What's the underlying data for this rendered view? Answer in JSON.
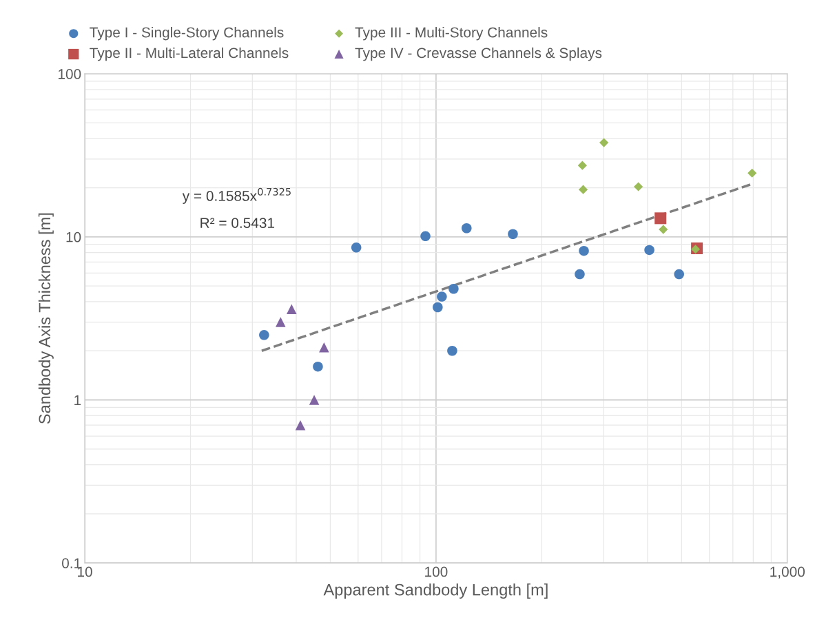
{
  "chart_data": {
    "type": "scatter",
    "xlabel": "Apparent Sandbody Length [m]",
    "ylabel": "Sandbody Axis Thickness [m]",
    "log": "xy",
    "xlim": [
      10,
      1000
    ],
    "ylim": [
      0.1,
      100
    ],
    "xticks": [
      10,
      100,
      {
        "value": 1000,
        "label": "1,000"
      }
    ],
    "yticks": [
      0.1,
      1,
      10,
      100
    ],
    "grid": true,
    "legend": "top",
    "annotations": [
      "y = 0.1585x$^{0.7325}$",
      "R² = 0.5431"
    ],
    "series": [
      {
        "name": "Type I - Single-Story Channels",
        "color": "#4a7ebb",
        "marker": "circle",
        "x": [
          32.4,
          46.1,
          59.3,
          93.3,
          101.1,
          103.9,
          112.2,
          111.2,
          122.2,
          165.5,
          256.5,
          263.6,
          404.9,
          492
        ],
        "values": [
          2.5,
          1.6,
          8.6,
          10.1,
          3.7,
          4.3,
          4.8,
          2.0,
          11.3,
          10.4,
          5.9,
          8.2,
          8.3,
          5.9
        ]
      },
      {
        "name": "Type II - Multi-Lateral Channels",
        "color": "#c0504d",
        "marker": "square",
        "x": [
          435.5,
          553
        ],
        "values": [
          13.0,
          8.5
        ]
      },
      {
        "name": "Type III - Multi-Story Channels",
        "color": "#9bbb59",
        "marker": "diamond",
        "x": [
          261,
          262.4,
          300.6,
          376.7,
          443.6,
          548,
          794
        ],
        "values": [
          27.4,
          19.5,
          37.8,
          20.3,
          11.1,
          8.4,
          24.6
        ]
      },
      {
        "name": "Type IV - Crevasse Channels & Splays",
        "color": "#8064a2",
        "marker": "triangle",
        "x": [
          36.1,
          38.8,
          41.1,
          45.0,
          48.0
        ],
        "values": [
          3.0,
          3.6,
          0.7,
          1.0,
          2.1
        ]
      },
      {
        "type": "line",
        "color": "#808080",
        "line_style": "dashed",
        "marker": "none",
        "x": [
          31.9,
          794
        ],
        "values": [
          2.0,
          21.1
        ]
      }
    ]
  }
}
